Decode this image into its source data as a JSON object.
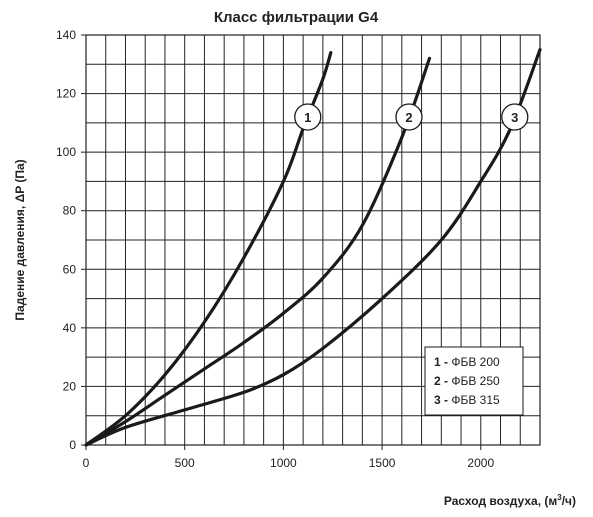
{
  "chart_data": {
    "type": "line",
    "title": "Класс фильтрации G4",
    "xlabel": "Расход воздуха, (м",
    "xlabel_sup": "3",
    "xlabel_end": "/ч)",
    "ylabel": "Падение давления, ΔP (Па)",
    "xlim": [
      0,
      2300
    ],
    "ylim": [
      0,
      140
    ],
    "x_ticks": [
      0,
      500,
      1000,
      1500,
      2000
    ],
    "y_ticks": [
      0,
      20,
      40,
      60,
      80,
      100,
      120,
      140
    ],
    "x_grid_step": 100,
    "y_grid_step": 10,
    "grid": true,
    "legend_position": "bottom-right",
    "series": [
      {
        "marker": "1",
        "name": "ФБВ 200",
        "x": [
          0,
          200,
          400,
          600,
          800,
          1000,
          1100,
          1200,
          1240
        ],
        "y": [
          0,
          10,
          24,
          42,
          64,
          90,
          108,
          125,
          134
        ]
      },
      {
        "marker": "2",
        "name": "ФБВ 250",
        "x": [
          0,
          200,
          400,
          600,
          800,
          1000,
          1200,
          1400,
          1600,
          1740
        ],
        "y": [
          0,
          8,
          17,
          26,
          35,
          45,
          57,
          75,
          105,
          132
        ]
      },
      {
        "marker": "3",
        "name": "ФБВ 315",
        "x": [
          0,
          200,
          500,
          800,
          1000,
          1200,
          1500,
          1800,
          2000,
          2150,
          2300
        ],
        "y": [
          0,
          6,
          12,
          18,
          24,
          33,
          50,
          70,
          90,
          108,
          135
        ]
      }
    ],
    "markers_at_y": 112
  }
}
